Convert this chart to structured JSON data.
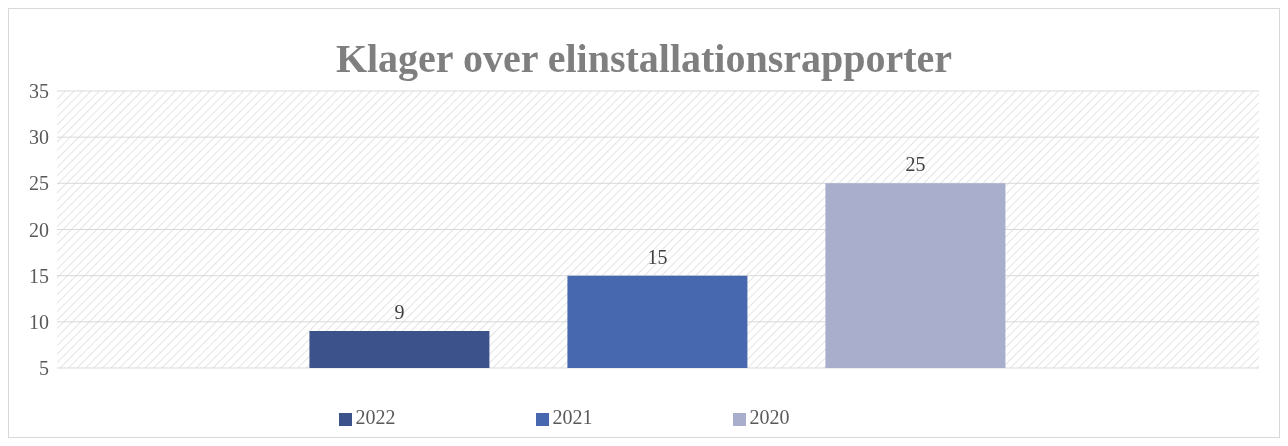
{
  "chart_data": {
    "type": "bar",
    "title": "Klager over elinstallationsrapporter",
    "categories": [
      null
    ],
    "series": [
      {
        "name": "2022",
        "color": "#3b528b",
        "values": [
          9
        ]
      },
      {
        "name": "2021",
        "color": "#4767ae",
        "values": [
          15
        ]
      },
      {
        "name": "2020",
        "color": "#a8aecc",
        "values": [
          25
        ]
      }
    ],
    "ylim": [
      5,
      35
    ],
    "yticks": [
      5,
      10,
      15,
      20,
      25,
      30,
      35
    ],
    "grid": "y",
    "legend": "bottom",
    "data_labels": true
  }
}
